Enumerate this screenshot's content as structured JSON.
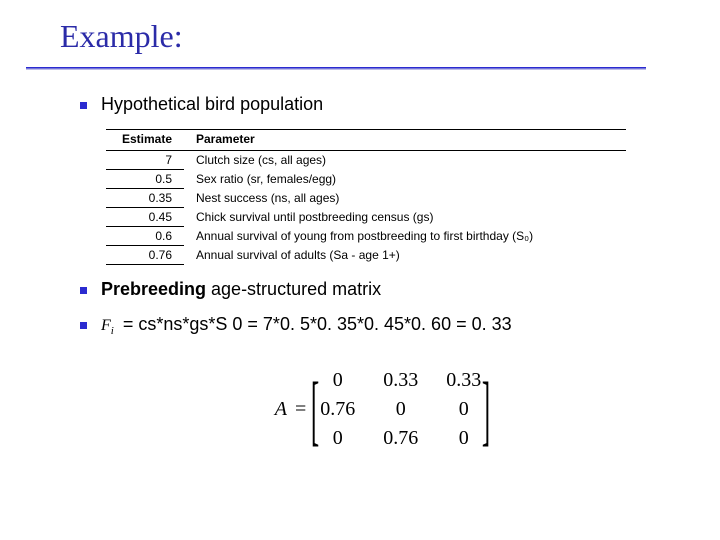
{
  "title": "Example:",
  "bullets": {
    "b1": "Hypothetical bird population",
    "b2_bold": "Prebreeding",
    "b2_rest": " age-structured matrix",
    "b3_fi": "F",
    "b3_sub": "i",
    "b3_rest": " = cs*ns*gs*S 0 = 7*0. 5*0. 35*0. 45*0. 60 = 0. 33"
  },
  "table": {
    "headers": {
      "est": "Estimate",
      "par": "Parameter"
    },
    "rows": [
      {
        "est": "7",
        "par": "Clutch size (cs, all ages)"
      },
      {
        "est": "0.5",
        "par": "Sex ratio (sr, females/egg)"
      },
      {
        "est": "0.35",
        "par": "Nest success (ns, all ages)"
      },
      {
        "est": "0.45",
        "par": "Chick survival until postbreeding census (gs)"
      },
      {
        "est": "0.6",
        "par": "Annual survival of young from postbreeding to first birthday (S₀)"
      },
      {
        "est": "0.76",
        "par": "Annual survival of adults (Sa - age 1+)"
      }
    ]
  },
  "matrix": {
    "A": "A",
    "eq": "=",
    "cells": [
      "0",
      "0.33",
      "0.33",
      "0.76",
      "0",
      "0",
      "0",
      "0.76",
      "0"
    ]
  },
  "style": {
    "accent": "#2b2bd0",
    "title_color": "#2b2ba8",
    "title_fontsize": 32,
    "body_fontsize": 18,
    "table_fontsize": 12,
    "matrix_fontsize": 20,
    "bg": "#ffffff"
  }
}
